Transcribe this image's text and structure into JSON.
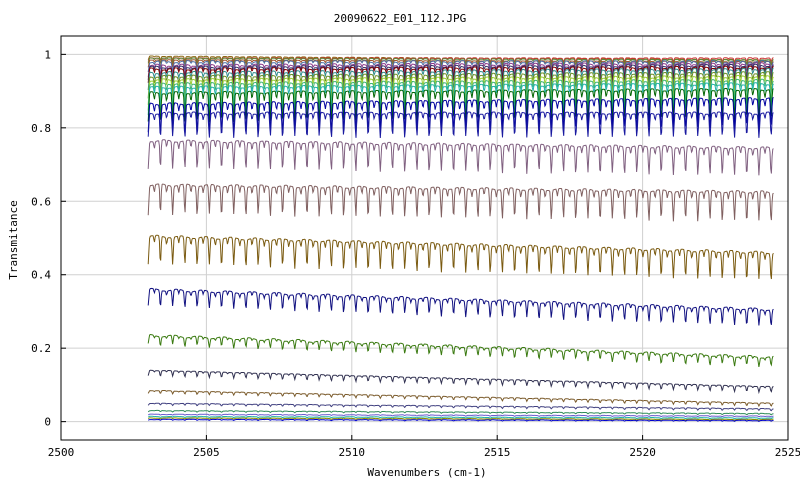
{
  "chart_data": {
    "type": "line",
    "title": "20090622_E01_112.JPG",
    "xlabel": "Wavenumbers (cm-1)",
    "ylabel": "Transmitance",
    "xlim": [
      2500,
      2525
    ],
    "ylim": [
      -0.05,
      1.05
    ],
    "x_ticks": [
      2500,
      2505,
      2510,
      2515,
      2520,
      2525
    ],
    "x_tick_labels": [
      "2500",
      "2505",
      "2510",
      "2515",
      "2520",
      "2525"
    ],
    "y_ticks": [
      0,
      0.2,
      0.4,
      0.6,
      0.8,
      1
    ],
    "y_tick_labels": [
      "0",
      "0.2",
      "0.4",
      "0.6",
      "0.8",
      "1"
    ],
    "grid": true,
    "legend": false,
    "x_range": [
      2503,
      2524.5
    ],
    "absorption_line_spacing": 0.42,
    "series": [
      {
        "color": "#8b6914",
        "baseline": 1.0,
        "start": 0.995,
        "end": 0.985,
        "depth": 0.01
      },
      {
        "color": "#cc3333",
        "baseline": 0.995,
        "start": 0.99,
        "end": 0.99,
        "depth": 0.01
      },
      {
        "color": "#5a8a3a",
        "baseline": 0.99,
        "start": 0.99,
        "end": 0.985,
        "depth": 0.015
      },
      {
        "color": "#a0522d",
        "baseline": 0.985,
        "start": 0.985,
        "end": 0.98,
        "depth": 0.02
      },
      {
        "color": "#4a6fa5",
        "baseline": 0.98,
        "start": 0.98,
        "end": 0.98,
        "depth": 0.025
      },
      {
        "color": "#8b3a8b",
        "baseline": 0.975,
        "start": 0.97,
        "end": 0.975,
        "depth": 0.03
      },
      {
        "color": "#333366",
        "baseline": 0.97,
        "start": 0.965,
        "end": 0.97,
        "depth": 0.035
      },
      {
        "color": "#800000",
        "baseline": 0.96,
        "start": 0.96,
        "end": 0.965,
        "depth": 0.04
      },
      {
        "color": "#2e8b8b",
        "baseline": 0.955,
        "start": 0.95,
        "end": 0.96,
        "depth": 0.05
      },
      {
        "color": "#6b8e23",
        "baseline": 0.945,
        "start": 0.94,
        "end": 0.95,
        "depth": 0.06
      },
      {
        "color": "#9acd32",
        "baseline": 0.935,
        "start": 0.93,
        "end": 0.94,
        "depth": 0.065
      },
      {
        "color": "#3cb371",
        "baseline": 0.925,
        "start": 0.92,
        "end": 0.93,
        "depth": 0.07
      },
      {
        "color": "#20b2aa",
        "baseline": 0.915,
        "start": 0.91,
        "end": 0.92,
        "depth": 0.075
      },
      {
        "color": "#006400",
        "baseline": 0.9,
        "start": 0.895,
        "end": 0.905,
        "depth": 0.08
      },
      {
        "color": "#0000a0",
        "baseline": 0.87,
        "start": 0.865,
        "end": 0.88,
        "depth": 0.08
      },
      {
        "color": "#1a1aa0",
        "baseline": 0.845,
        "start": 0.84,
        "end": 0.84,
        "depth": 0.065
      },
      {
        "color": "#806080",
        "baseline": 0.745,
        "start": 0.765,
        "end": 0.745,
        "depth": 0.075
      },
      {
        "color": "#806060",
        "baseline": 0.625,
        "start": 0.645,
        "end": 0.625,
        "depth": 0.08
      },
      {
        "color": "#7a5a10",
        "baseline": 0.475,
        "start": 0.505,
        "end": 0.46,
        "depth": 0.075
      },
      {
        "color": "#101080",
        "baseline": 0.32,
        "start": 0.36,
        "end": 0.305,
        "depth": 0.045
      },
      {
        "color": "#3a7a10",
        "baseline": 0.2,
        "start": 0.235,
        "end": 0.175,
        "depth": 0.025
      },
      {
        "color": "#303050",
        "baseline": 0.11,
        "start": 0.14,
        "end": 0.095,
        "depth": 0.015
      },
      {
        "color": "#7a5a2a",
        "baseline": 0.06,
        "start": 0.085,
        "end": 0.05,
        "depth": 0.008
      },
      {
        "color": "#404080",
        "baseline": 0.04,
        "start": 0.05,
        "end": 0.035,
        "depth": 0.005
      },
      {
        "color": "#2e8b57",
        "baseline": 0.025,
        "start": 0.03,
        "end": 0.022,
        "depth": 0.003
      },
      {
        "color": "#6a5acd",
        "baseline": 0.018,
        "start": 0.02,
        "end": 0.015,
        "depth": 0.002
      },
      {
        "color": "#20b2aa",
        "baseline": 0.012,
        "start": 0.014,
        "end": 0.01,
        "depth": 0.002
      },
      {
        "color": "#8b8b00",
        "baseline": 0.008,
        "start": 0.01,
        "end": 0.006,
        "depth": 0.002
      },
      {
        "color": "#0000cd",
        "baseline": 0.004,
        "start": 0.006,
        "end": 0.003,
        "depth": 0.002
      }
    ]
  }
}
